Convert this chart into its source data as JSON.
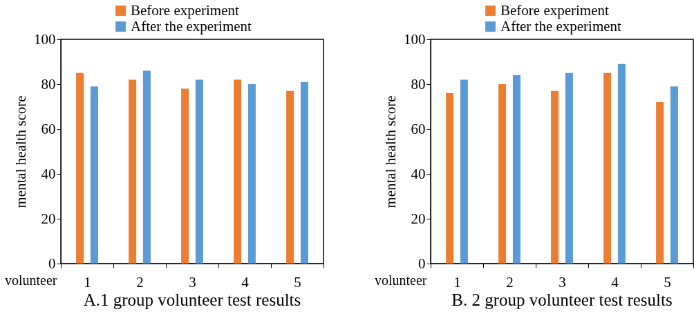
{
  "chart_data": [
    {
      "type": "bar",
      "title": "A.1 group volunteer test results",
      "xlabel": "volunteer",
      "ylabel": "mental health score",
      "categories": [
        "1",
        "2",
        "3",
        "4",
        "5"
      ],
      "series": [
        {
          "name": "Before experiment",
          "color": "#ed7d31",
          "values": [
            85,
            82,
            78,
            82,
            77
          ]
        },
        {
          "name": "After the experiment",
          "color": "#5b9bd5",
          "values": [
            79,
            86,
            82,
            80,
            81
          ]
        }
      ],
      "ylim": [
        0,
        100
      ],
      "yticks": [
        0,
        20,
        40,
        60,
        80,
        100
      ],
      "grid": false,
      "legend": "top"
    },
    {
      "type": "bar",
      "title": "B. 2 group volunteer test results",
      "xlabel": "volunteer",
      "ylabel": "mental health score",
      "categories": [
        "1",
        "2",
        "3",
        "4",
        "5"
      ],
      "series": [
        {
          "name": "Before experiment",
          "color": "#ed7d31",
          "values": [
            76,
            80,
            77,
            85,
            72
          ]
        },
        {
          "name": "After the experiment",
          "color": "#5b9bd5",
          "values": [
            82,
            84,
            85,
            89,
            79
          ]
        }
      ],
      "ylim": [
        0,
        100
      ],
      "yticks": [
        0,
        20,
        40,
        60,
        80,
        100
      ],
      "grid": false,
      "legend": "top"
    }
  ]
}
